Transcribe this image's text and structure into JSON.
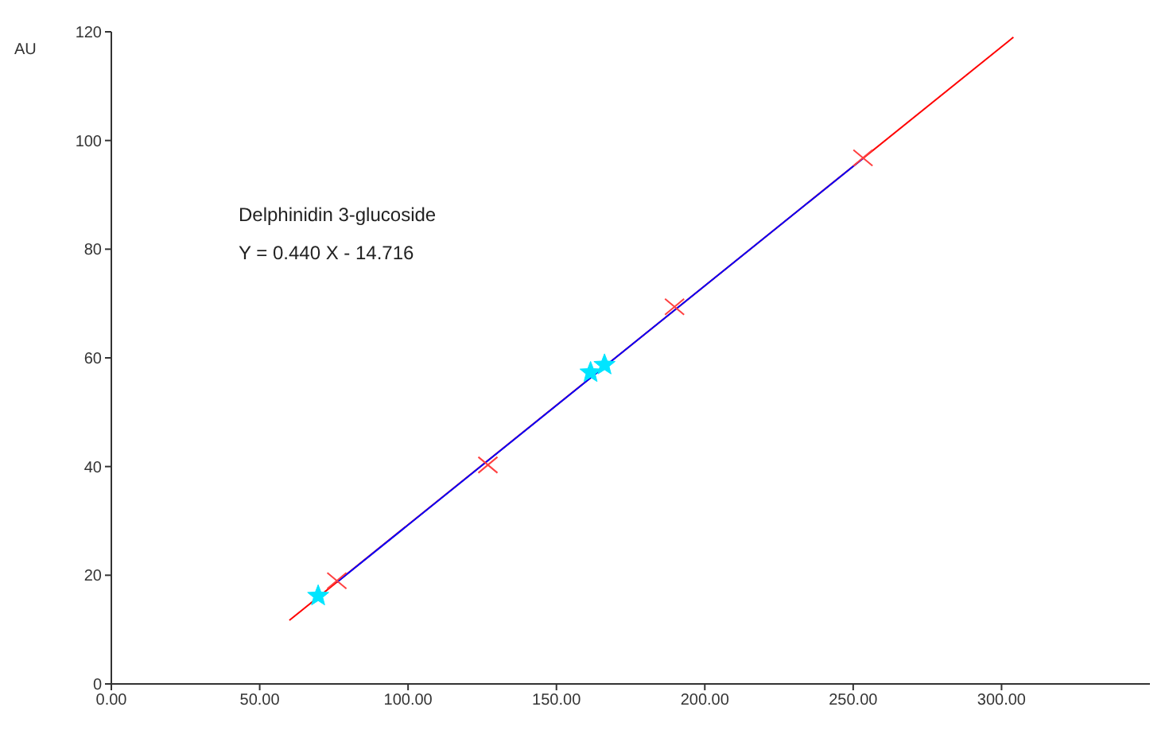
{
  "chart_data": {
    "type": "scatter",
    "ylabel": "AU",
    "annotations": [
      "Delphinidin 3-glucoside",
      "Y = 0.440 X - 14.716"
    ],
    "xlim": [
      0,
      350
    ],
    "ylim": [
      0,
      120
    ],
    "xticks": [
      {
        "value": 0,
        "label": "0.00"
      },
      {
        "value": 50,
        "label": "50.00"
      },
      {
        "value": 100,
        "label": "100.00"
      },
      {
        "value": 150,
        "label": "150.00"
      },
      {
        "value": 200,
        "label": "200.00"
      },
      {
        "value": 250,
        "label": "250.00"
      },
      {
        "value": 300,
        "label": "300.00"
      }
    ],
    "yticks": [
      0,
      20,
      40,
      60,
      80,
      100,
      120
    ],
    "grid": false,
    "legend": false,
    "series": [
      {
        "type": "line",
        "color": "#ff0000",
        "x": [
          60,
          304
        ],
        "values": [
          11.7,
          119.0
        ],
        "marker": "none",
        "line_style": "solid"
      },
      {
        "type": "line",
        "color": "#0000ff",
        "x": [
          76,
          253.3
        ],
        "values": [
          18.7,
          96.7
        ],
        "marker": "none",
        "line_style": "solid"
      },
      {
        "color": "#ff4040",
        "x": [
          76,
          126.9,
          189.8,
          253.3
        ],
        "values": [
          19.0,
          40.3,
          69.4,
          96.8
        ],
        "marker": "cross"
      },
      {
        "color": "#00e5ff",
        "x": [
          69.7,
          161.5,
          166.2
        ],
        "values": [
          16.2,
          57.3,
          58.7
        ],
        "marker": "star"
      }
    ]
  }
}
